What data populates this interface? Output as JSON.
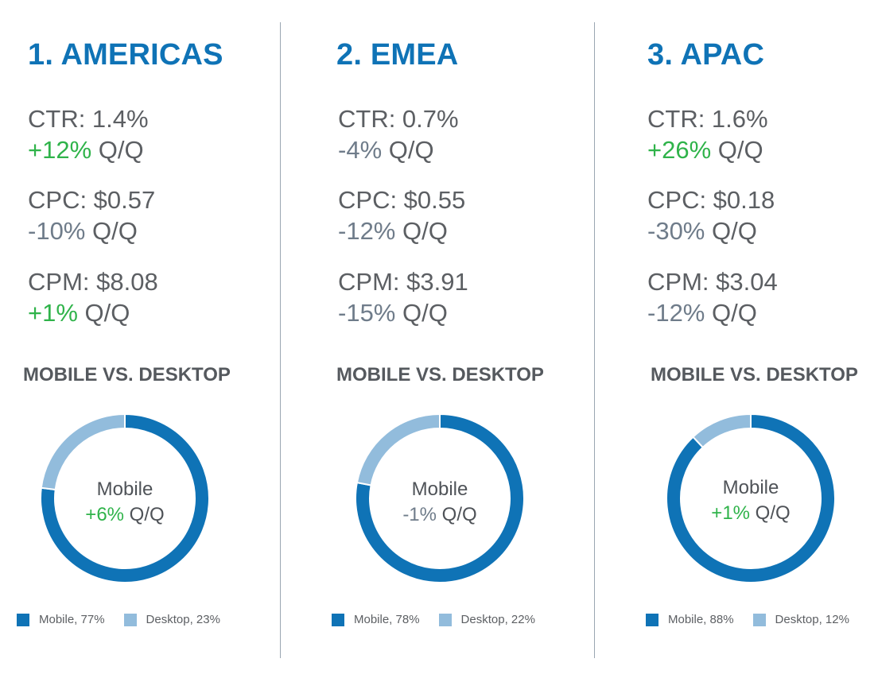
{
  "colors": {
    "title_blue": "#0f73b6",
    "mobile": "#0f73b6",
    "desktop": "#92bcdc",
    "positive": "#2fb34a",
    "negative": "#6f7c8a",
    "text": "#5c5f63"
  },
  "qq_suffix": "Q/Q",
  "section_title": "MOBILE VS. DESKTOP",
  "center_label": "Mobile",
  "regions": [
    {
      "title": "1. AMERICAS",
      "metrics": [
        {
          "label": "CTR: 1.4%",
          "change": "+12%",
          "direction": "positive"
        },
        {
          "label": "CPC: $0.57",
          "change": "-10%",
          "direction": "negative"
        },
        {
          "label": "CPM: $8.08",
          "change": "+1%",
          "direction": "positive"
        }
      ],
      "mobile_change": "+6%",
      "mobile_direction": "positive",
      "legend": [
        "Mobile, 77%",
        "Desktop, 23%"
      ]
    },
    {
      "title": "2. EMEA",
      "metrics": [
        {
          "label": "CTR: 0.7%",
          "change": "-4%",
          "direction": "negative"
        },
        {
          "label": "CPC: $0.55",
          "change": "-12%",
          "direction": "negative"
        },
        {
          "label": "CPM: $3.91",
          "change": "-15%",
          "direction": "negative"
        }
      ],
      "mobile_change": "-1%",
      "mobile_direction": "negative",
      "legend": [
        "Mobile, 78%",
        "Desktop, 22%"
      ]
    },
    {
      "title": "3. APAC",
      "metrics": [
        {
          "label": "CTR: 1.6%",
          "change": "+26%",
          "direction": "positive"
        },
        {
          "label": "CPC: $0.18",
          "change": "-30%",
          "direction": "negative"
        },
        {
          "label": "CPM: $3.04",
          "change": "-12%",
          "direction": "negative"
        }
      ],
      "mobile_change": "+1%",
      "mobile_direction": "positive",
      "legend": [
        "Mobile, 88%",
        "Desktop, 12%"
      ]
    }
  ],
  "chart_data": [
    {
      "type": "pie",
      "title": "MOBILE VS. DESKTOP",
      "categories": [
        "Mobile",
        "Desktop"
      ],
      "values": [
        77,
        23
      ],
      "legend": "bottom"
    },
    {
      "type": "pie",
      "title": "MOBILE VS. DESKTOP",
      "categories": [
        "Mobile",
        "Desktop"
      ],
      "values": [
        78,
        22
      ],
      "legend": "bottom"
    },
    {
      "type": "pie",
      "title": "MOBILE VS. DESKTOP",
      "categories": [
        "Mobile",
        "Desktop"
      ],
      "values": [
        88,
        12
      ],
      "legend": "bottom"
    }
  ]
}
